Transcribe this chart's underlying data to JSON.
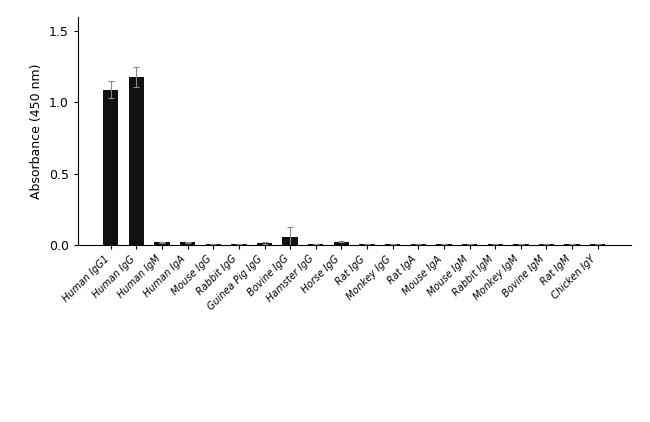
{
  "categories": [
    "Human IgG1",
    "Human IgG",
    "Human IgM",
    "Human IgA",
    "Mouse IgG",
    "Rabbit IgG",
    "Guinea Pig IgG",
    "Bovine IgG",
    "Hamster IgG",
    "Horse IgG",
    "Rat IgG",
    "Monkey IgG",
    "Rat IgA",
    "Mouse IgA",
    "Mouse IgM",
    "Rabbit IgM",
    "Monkey IgM",
    "Bovine IgM",
    "Rat IgM",
    "Chicken IgY"
  ],
  "values": [
    1.09,
    1.18,
    0.018,
    0.018,
    0.004,
    0.004,
    0.012,
    0.055,
    0.004,
    0.022,
    0.004,
    0.004,
    0.004,
    0.004,
    0.004,
    0.004,
    0.004,
    0.004,
    0.004,
    0.004
  ],
  "errors": [
    0.06,
    0.07,
    0.004,
    0.004,
    0.002,
    0.002,
    0.006,
    0.07,
    0.002,
    0.004,
    0.002,
    0.002,
    0.002,
    0.002,
    0.002,
    0.002,
    0.002,
    0.002,
    0.002,
    0.002
  ],
  "bar_color": "#111111",
  "error_color": "#888888",
  "ylabel": "Absorbance (450 nm)",
  "ylim": [
    0,
    1.6
  ],
  "yticks": [
    0.0,
    0.5,
    1.0,
    1.5
  ],
  "background_color": "#ffffff",
  "bar_width": 0.6
}
